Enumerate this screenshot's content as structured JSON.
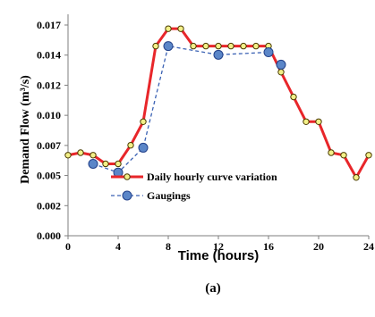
{
  "chart_data": {
    "type": "line",
    "xlabel": "Time (hours)",
    "ylabel": "Demand Flow (m³/s)",
    "caption": "(a)",
    "xlim": [
      0,
      24
    ],
    "ylim": [
      0,
      0.017
    ],
    "xticks": [
      "0",
      "4",
      "8",
      "12",
      "16",
      "20",
      "24"
    ],
    "yticks": [
      "0.000",
      "0.002",
      "0.005",
      "0.007",
      "0.010",
      "0.012",
      "0.014",
      "0.017"
    ],
    "series": [
      {
        "name": "Daily hourly curve variation",
        "color": "#e8262a",
        "marker_fill": "#f3f088",
        "x": [
          0,
          1,
          2,
          3,
          4,
          5,
          6,
          7,
          8,
          9,
          10,
          11,
          12,
          13,
          14,
          15,
          16,
          17,
          18,
          19,
          20,
          21,
          22,
          23,
          24
        ],
        "y": [
          0.0065,
          0.0067,
          0.0065,
          0.0058,
          0.0058,
          0.0073,
          0.0092,
          0.0153,
          0.0167,
          0.0167,
          0.0153,
          0.0153,
          0.0153,
          0.0153,
          0.0153,
          0.0153,
          0.0153,
          0.0132,
          0.0112,
          0.0092,
          0.0092,
          0.0067,
          0.0065,
          0.0047,
          0.0065
        ]
      },
      {
        "name": "Gaugings",
        "color": "#3b62b4",
        "marker_fill": "#5b86c8",
        "x": [
          2,
          4,
          6,
          8,
          12,
          16,
          17
        ],
        "y": [
          0.0058,
          0.0051,
          0.0071,
          0.0153,
          0.0146,
          0.0148,
          0.0138
        ]
      }
    ],
    "legend": "inside-lower-center"
  }
}
